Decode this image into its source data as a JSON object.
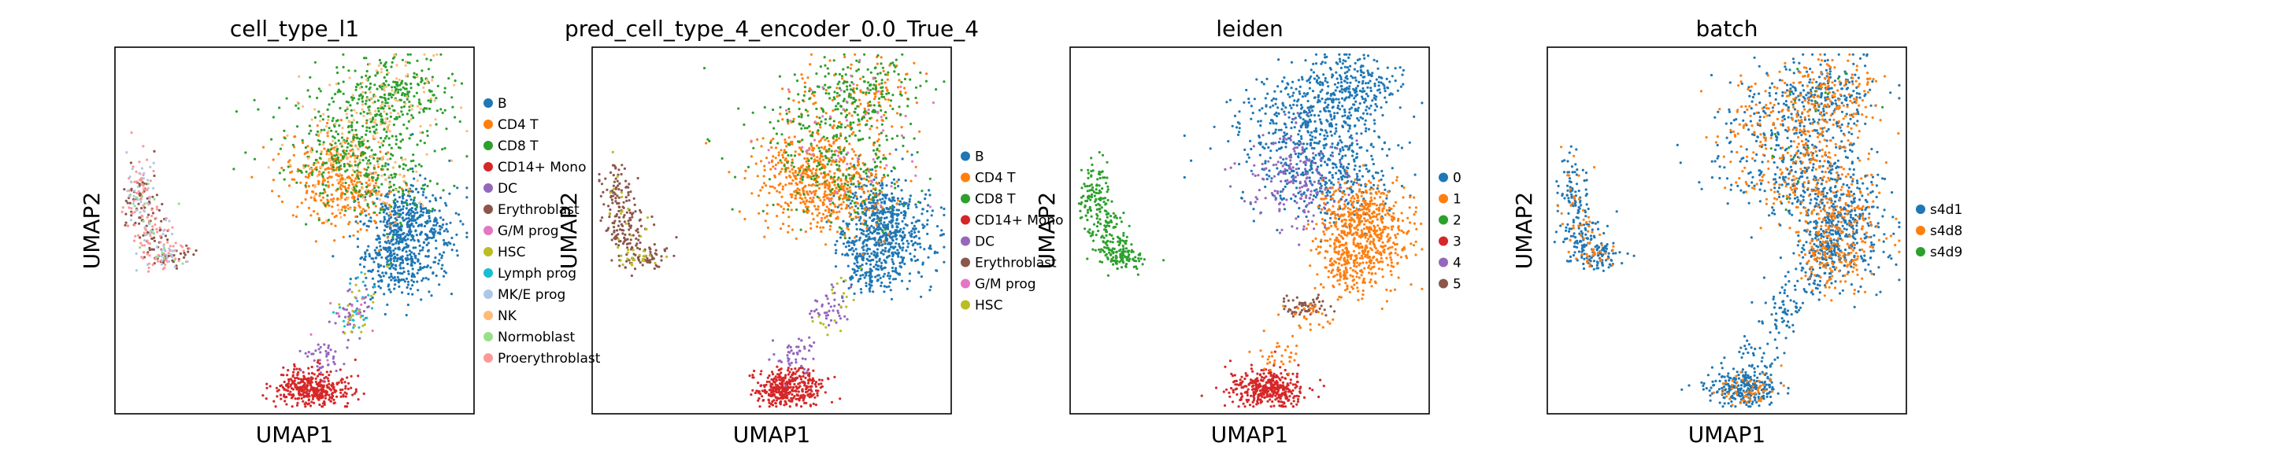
{
  "chart_data": [
    {
      "type": "scatter",
      "title": "cell_type_l1",
      "xlabel": "UMAP1",
      "ylabel": "UMAP2",
      "legend_position": "right",
      "series": [
        {
          "name": "B",
          "color": "#1f77b4"
        },
        {
          "name": "CD4 T",
          "color": "#ff7f0e"
        },
        {
          "name": "CD8 T",
          "color": "#2ca02c"
        },
        {
          "name": "CD14+ Mono",
          "color": "#d62728"
        },
        {
          "name": "DC",
          "color": "#9467bd"
        },
        {
          "name": "Erythroblast",
          "color": "#8c564b"
        },
        {
          "name": "G/M prog",
          "color": "#e377c2"
        },
        {
          "name": "HSC",
          "color": "#bcbd22"
        },
        {
          "name": "Lymph prog",
          "color": "#17becf"
        },
        {
          "name": "MK/E prog",
          "color": "#aec7e8"
        },
        {
          "name": "NK",
          "color": "#ffbb78"
        },
        {
          "name": "Normoblast",
          "color": "#98df8a"
        },
        {
          "name": "Proerythroblast",
          "color": "#ff9896"
        }
      ]
    },
    {
      "type": "scatter",
      "title": "pred_cell_type_4_encoder_0.0_True_4",
      "xlabel": "UMAP1",
      "ylabel": "UMAP2",
      "legend_position": "right",
      "series": [
        {
          "name": "B",
          "color": "#1f77b4"
        },
        {
          "name": "CD4 T",
          "color": "#ff7f0e"
        },
        {
          "name": "CD8 T",
          "color": "#2ca02c"
        },
        {
          "name": "CD14+ Mono",
          "color": "#d62728"
        },
        {
          "name": "DC",
          "color": "#9467bd"
        },
        {
          "name": "Erythroblast",
          "color": "#8c564b"
        },
        {
          "name": "G/M prog",
          "color": "#e377c2"
        },
        {
          "name": "HSC",
          "color": "#bcbd22"
        }
      ]
    },
    {
      "type": "scatter",
      "title": "leiden",
      "xlabel": "UMAP1",
      "ylabel": "UMAP2",
      "legend_position": "right",
      "series": [
        {
          "name": "0",
          "color": "#1f77b4"
        },
        {
          "name": "1",
          "color": "#ff7f0e"
        },
        {
          "name": "2",
          "color": "#2ca02c"
        },
        {
          "name": "3",
          "color": "#d62728"
        },
        {
          "name": "4",
          "color": "#9467bd"
        },
        {
          "name": "5",
          "color": "#8c564b"
        }
      ]
    },
    {
      "type": "scatter",
      "title": "batch",
      "xlabel": "UMAP1",
      "ylabel": "UMAP2",
      "legend_position": "right",
      "series": [
        {
          "name": "s4d1",
          "color": "#1f77b4"
        },
        {
          "name": "s4d8",
          "color": "#ff7f0e"
        },
        {
          "name": "s4d9",
          "color": "#2ca02c"
        }
      ]
    }
  ]
}
